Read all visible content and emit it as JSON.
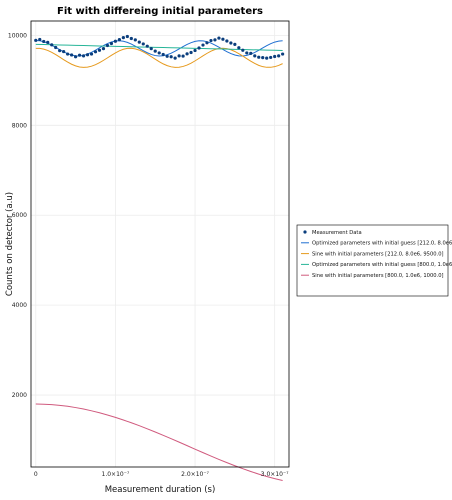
{
  "chart_data": {
    "type": "line",
    "title": "Fit with differeing initial parameters",
    "xlabel": "Measurement duration (s)",
    "ylabel": "Counts on detector (a.u)",
    "xlim": [
      -6e-09,
      3.18e-07
    ],
    "ylim": [
      400,
      10320
    ],
    "x_ticks": [
      0,
      1e-07,
      2e-07,
      3e-07
    ],
    "x_tick_labels": [
      "0",
      "1.0×10⁻⁷",
      "2.0×10⁻⁷",
      "3.0×10⁻⁷"
    ],
    "y_ticks": [
      2000,
      4000,
      6000,
      8000,
      10000
    ],
    "y_tick_labels": [
      "2000",
      "4000",
      "6000",
      "8000",
      "10000"
    ],
    "grid": true,
    "legend_position": "right",
    "series": [
      {
        "name": "Measurement Data",
        "kind": "scatter",
        "color": "#0b3e7d",
        "x": [
          0,
          5e-09,
          1e-08,
          1.5e-08,
          2e-08,
          2.5e-08,
          3e-08,
          3.5e-08,
          4e-08,
          4.5e-08,
          5e-08,
          5.5e-08,
          6e-08,
          6.5e-08,
          7e-08,
          7.5e-08,
          8e-08,
          8.5e-08,
          9e-08,
          9.5e-08,
          1e-07,
          1.05e-07,
          1.1e-07,
          1.15e-07,
          1.2e-07,
          1.25e-07,
          1.3e-07,
          1.35e-07,
          1.4e-07,
          1.45e-07,
          1.5e-07,
          1.55e-07,
          1.6e-07,
          1.65e-07,
          1.7e-07,
          1.75e-07,
          1.8e-07,
          1.85e-07,
          1.9e-07,
          1.95e-07,
          2e-07,
          2.05e-07,
          2.1e-07,
          2.15e-07,
          2.2e-07,
          2.25e-07,
          2.3e-07,
          2.35e-07,
          2.4e-07,
          2.45e-07,
          2.5e-07,
          2.55e-07,
          2.6e-07,
          2.65e-07,
          2.7e-07,
          2.75e-07,
          2.8e-07,
          2.85e-07,
          2.9e-07,
          2.95e-07,
          3e-07,
          3.05e-07,
          3.1e-07
        ],
        "y": [
          9890,
          9910,
          9865,
          9845,
          9790,
          9730,
          9660,
          9640,
          9585,
          9565,
          9525,
          9560,
          9545,
          9570,
          9585,
          9635,
          9670,
          9705,
          9775,
          9820,
          9870,
          9905,
          9950,
          9975,
          9930,
          9900,
          9850,
          9810,
          9760,
          9705,
          9650,
          9610,
          9575,
          9535,
          9525,
          9495,
          9545,
          9540,
          9590,
          9620,
          9665,
          9720,
          9785,
          9835,
          9885,
          9900,
          9940,
          9915,
          9875,
          9830,
          9800,
          9725,
          9670,
          9610,
          9600,
          9545,
          9515,
          9505,
          9495,
          9510,
          9530,
          9545,
          9585
        ]
      },
      {
        "name": "Optimized parameters with initial guess [212.0, 8.0e6, 9500.0]",
        "kind": "line",
        "color": "#1f6fd1",
        "x": [
          0,
          5e-09,
          1e-08,
          1.5e-08,
          2e-08,
          2.5e-08,
          3e-08,
          3.5e-08,
          4e-08,
          4.5e-08,
          5e-08,
          5.5e-08,
          6e-08,
          6.5e-08,
          7e-08,
          7.5e-08,
          8e-08,
          8.5e-08,
          9e-08,
          9.5e-08,
          1e-07,
          1.05e-07,
          1.1e-07,
          1.15e-07,
          1.2e-07,
          1.25e-07,
          1.3e-07,
          1.35e-07,
          1.4e-07,
          1.45e-07,
          1.5e-07,
          1.55e-07,
          1.6e-07,
          1.65e-07,
          1.7e-07,
          1.75e-07,
          1.8e-07,
          1.85e-07,
          1.9e-07,
          1.95e-07,
          2e-07,
          2.05e-07,
          2.1e-07,
          2.15e-07,
          2.2e-07,
          2.25e-07,
          2.3e-07,
          2.35e-07,
          2.4e-07,
          2.45e-07,
          2.5e-07,
          2.55e-07,
          2.6e-07,
          2.65e-07,
          2.7e-07,
          2.75e-07,
          2.8e-07,
          2.85e-07,
          2.9e-07,
          2.95e-07,
          3e-07,
          3.05e-07,
          3.1e-07
        ],
        "y": [
          9887,
          9880,
          9859,
          9826,
          9783,
          9734,
          9682,
          9634,
          9593,
          9562,
          9544,
          9542,
          9556,
          9584,
          9624,
          9672,
          9724,
          9774,
          9818,
          9853,
          9874,
          9880,
          9870,
          9845,
          9808,
          9761,
          9710,
          9660,
          9614,
          9576,
          9551,
          9541,
          9547,
          9569,
          9604,
          9649,
          9700,
          9751,
          9798,
          9838,
          9866,
          9880,
          9877,
          9860,
          9829,
          9786,
          9737,
          9686,
          9637,
          9595,
          9563,
          9545,
          9541,
          9555,
          9582,
          9621,
          9669,
          9720,
          9771,
          9816,
          9851,
          9873,
          9880
        ]
      },
      {
        "name": "Sine with initial parameters [212.0, 8.0e6, 9500.0]",
        "kind": "line",
        "color": "#e69a1e",
        "x": [
          0,
          5e-09,
          1e-08,
          1.5e-08,
          2e-08,
          2.5e-08,
          3e-08,
          3.5e-08,
          4e-08,
          4.5e-08,
          5e-08,
          5.5e-08,
          6e-08,
          6.5e-08,
          7e-08,
          7.5e-08,
          8e-08,
          8.5e-08,
          9e-08,
          9.5e-08,
          1e-07,
          1.05e-07,
          1.1e-07,
          1.15e-07,
          1.2e-07,
          1.25e-07,
          1.3e-07,
          1.35e-07,
          1.4e-07,
          1.45e-07,
          1.5e-07,
          1.55e-07,
          1.6e-07,
          1.65e-07,
          1.7e-07,
          1.75e-07,
          1.8e-07,
          1.85e-07,
          1.9e-07,
          1.95e-07,
          2e-07,
          2.05e-07,
          2.1e-07,
          2.15e-07,
          2.2e-07,
          2.25e-07,
          2.3e-07,
          2.35e-07,
          2.4e-07,
          2.45e-07,
          2.5e-07,
          2.55e-07,
          2.6e-07,
          2.65e-07,
          2.7e-07,
          2.75e-07,
          2.8e-07,
          2.85e-07,
          2.9e-07,
          2.95e-07,
          3e-07,
          3.05e-07,
          3.1e-07
        ],
        "y": [
          9712,
          9711,
          9695,
          9665,
          9624,
          9573,
          9517,
          9460,
          9406,
          9358,
          9322,
          9298,
          9288,
          9294,
          9315,
          9348,
          9392,
          9444,
          9500,
          9557,
          9610,
          9657,
          9692,
          9711,
          9714,
          9700,
          9673,
          9633,
          9584,
          9528,
          9471,
          9416,
          9366,
          9327,
          9301,
          9289,
          9291,
          9309,
          9340,
          9382,
          9433,
          9489,
          9546,
          9600,
          9649,
          9686,
          9708,
          9715,
          9705,
          9680,
          9642,
          9594,
          9539,
          9482,
          9426,
          9375,
          9333,
          9304,
          9290,
          9290,
          9304,
          9332,
          9372
        ]
      },
      {
        "name": "Optimized parameters with initial guess [800.0, 1.0e6, 1000.0]",
        "kind": "line",
        "color": "#27b598",
        "x": [
          0,
          1e-08,
          2e-08,
          3e-08,
          4e-08,
          5e-08,
          6e-08,
          7e-08,
          8e-08,
          9e-08,
          1e-07,
          1.1e-07,
          1.2e-07,
          1.3e-07,
          1.4e-07,
          1.5e-07,
          1.6e-07,
          1.7e-07,
          1.8e-07,
          1.9e-07,
          2e-07,
          2.1e-07,
          2.2e-07,
          2.3e-07,
          2.4e-07,
          2.5e-07,
          2.6e-07,
          2.7e-07,
          2.8e-07,
          2.9e-07,
          3e-07,
          3.1e-07
        ],
        "y": [
          9800,
          9796,
          9791,
          9787,
          9783,
          9778,
          9774,
          9769,
          9765,
          9761,
          9756,
          9752,
          9747,
          9743,
          9739,
          9734,
          9730,
          9725,
          9721,
          9717,
          9712,
          9708,
          9703,
          9699,
          9695,
          9690,
          9686,
          9681,
          9677,
          9673,
          9668,
          9664
        ]
      },
      {
        "name": "Sine with initial parameters [800.0, 1.0e6, 1000.0]",
        "kind": "line",
        "color": "#d05a7e",
        "x": [
          0,
          1e-08,
          2e-08,
          3e-08,
          4e-08,
          5e-08,
          6e-08,
          7e-08,
          8e-08,
          9e-08,
          1e-07,
          1.1e-07,
          1.2e-07,
          1.3e-07,
          1.4e-07,
          1.5e-07,
          1.6e-07,
          1.7e-07,
          1.8e-07,
          1.9e-07,
          2e-07,
          2.1e-07,
          2.2e-07,
          2.3e-07,
          2.4e-07,
          2.5e-07,
          2.6e-07,
          2.7e-07,
          2.8e-07,
          2.9e-07,
          3e-07,
          3.1e-07
        ],
        "y": [
          1800,
          1797,
          1787,
          1772,
          1750,
          1722,
          1689,
          1650,
          1606,
          1557,
          1504,
          1446,
          1384,
          1319,
          1250,
          1179,
          1105,
          1030,
          953,
          875,
          797,
          720,
          644,
          569,
          497,
          428,
          362,
          300,
          242,
          189,
          142,
          100
        ]
      }
    ]
  }
}
